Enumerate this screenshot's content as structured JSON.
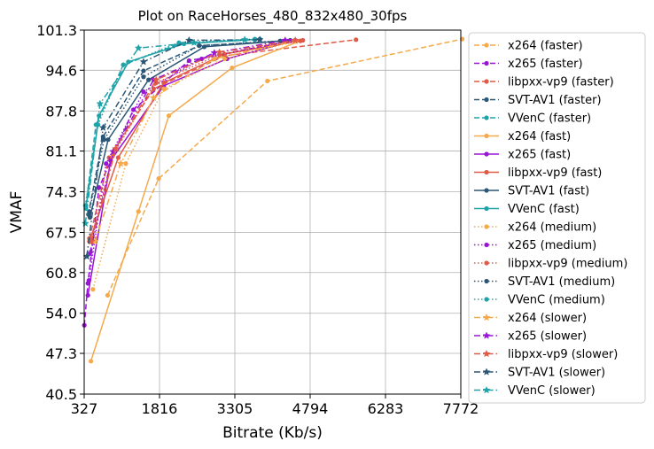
{
  "chart_data": {
    "type": "line",
    "title": "Plot on RaceHorses_480_832x480_30fps",
    "xlabel": "Bitrate (Kb/s)",
    "ylabel": "VMAF",
    "xlim": [
      327,
      7772
    ],
    "ylim": [
      40.5,
      101.3
    ],
    "xticks": [
      "327",
      "1816",
      "3305",
      "4794",
      "6283",
      "7772"
    ],
    "yticks": [
      "40.5",
      "47.3",
      "54.0",
      "60.8",
      "67.5",
      "74.3",
      "81.1",
      "87.8",
      "94.6",
      "101.3"
    ],
    "grid": true,
    "legend_position": "outside-right",
    "series": [
      {
        "name": "x264 (faster)",
        "color": "#f5a94a",
        "dash": "dashed",
        "marker": "circle",
        "points": [
          [
            790,
            57.0
          ],
          [
            1800,
            76.5
          ],
          [
            3950,
            92.8
          ],
          [
            7800,
            99.8
          ]
        ]
      },
      {
        "name": "x265 (faster)",
        "color": "#9a14d6",
        "dash": "dashed",
        "marker": "circle",
        "points": [
          [
            330,
            52.0
          ],
          [
            400,
            59.0
          ],
          [
            620,
            75.0
          ],
          [
            1300,
            88.0
          ],
          [
            2400,
            96.2
          ],
          [
            4400,
            99.5
          ]
        ]
      },
      {
        "name": "libpxx-vp9 (faster)",
        "color": "#e05a47",
        "dash": "dashed",
        "marker": "circle",
        "points": [
          [
            430,
            66.5
          ],
          [
            820,
            80.0
          ],
          [
            1700,
            91.5
          ],
          [
            3100,
            97.0
          ],
          [
            5700,
            99.7
          ]
        ]
      },
      {
        "name": "SVT-AV1 (faster)",
        "color": "#2b5676",
        "dash": "dashed",
        "marker": "circle",
        "points": [
          [
            410,
            70.5
          ],
          [
            700,
            83.5
          ],
          [
            1500,
            94.5
          ],
          [
            2600,
            98.7
          ],
          [
            4300,
            99.5
          ]
        ]
      },
      {
        "name": "VVenC (faster)",
        "color": "#1ea3a8",
        "dash": "dashed",
        "marker": "circle",
        "points": [
          [
            360,
            72.0
          ],
          [
            560,
            85.5
          ],
          [
            1100,
            95.5
          ],
          [
            2200,
            99.0
          ],
          [
            3700,
            99.7
          ]
        ]
      },
      {
        "name": "x264 (fast)",
        "color": "#f5a94a",
        "dash": "solid",
        "marker": "circle",
        "points": [
          [
            460,
            46.0
          ],
          [
            1400,
            71.0
          ],
          [
            2000,
            87.0
          ],
          [
            3250,
            95.0
          ],
          [
            4600,
            99.5
          ]
        ]
      },
      {
        "name": "x265 (fast)",
        "color": "#9a14d6",
        "dash": "solid",
        "marker": "circle",
        "points": [
          [
            400,
            57.0
          ],
          [
            850,
            79.5
          ],
          [
            1900,
            92.0
          ],
          [
            3150,
            96.5
          ],
          [
            4500,
            99.6
          ]
        ]
      },
      {
        "name": "libpxx-vp9 (fast)",
        "color": "#e05a47",
        "dash": "solid",
        "marker": "circle",
        "points": [
          [
            430,
            66.0
          ],
          [
            1000,
            80.0
          ],
          [
            1900,
            92.5
          ],
          [
            3100,
            97.3
          ],
          [
            4650,
            99.6
          ]
        ]
      },
      {
        "name": "SVT-AV1 (fast)",
        "color": "#2b5676",
        "dash": "solid",
        "marker": "circle",
        "points": [
          [
            440,
            70.0
          ],
          [
            800,
            83.0
          ],
          [
            1600,
            93.0
          ],
          [
            2700,
            98.5
          ],
          [
            4400,
            99.6
          ]
        ]
      },
      {
        "name": "VVenC (fast)",
        "color": "#1ea3a8",
        "dash": "solid",
        "marker": "circle",
        "points": [
          [
            360,
            71.5
          ],
          [
            620,
            87.0
          ],
          [
            1200,
            96.0
          ],
          [
            2300,
            99.0
          ],
          [
            3800,
            99.8
          ]
        ]
      },
      {
        "name": "x264 (medium)",
        "color": "#f5a94a",
        "dash": "dotted",
        "marker": "circle",
        "points": [
          [
            500,
            58.0
          ],
          [
            1150,
            79.0
          ],
          [
            1900,
            91.5
          ],
          [
            3100,
            96.5
          ],
          [
            4500,
            99.4
          ]
        ]
      },
      {
        "name": "x265 (medium)",
        "color": "#9a14d6",
        "dash": "dotted",
        "marker": "circle",
        "points": [
          [
            420,
            59.5
          ],
          [
            760,
            79.0
          ],
          [
            1500,
            91.0
          ],
          [
            2650,
            96.5
          ],
          [
            4400,
            99.5
          ]
        ]
      },
      {
        "name": "libpxx-vp9 (medium)",
        "color": "#e05a47",
        "dash": "dotted",
        "marker": "circle",
        "points": [
          [
            450,
            66.0
          ],
          [
            900,
            80.5
          ],
          [
            1750,
            92.5
          ],
          [
            3000,
            97.2
          ],
          [
            4600,
            99.5
          ]
        ]
      },
      {
        "name": "SVT-AV1 (medium)",
        "color": "#2b5676",
        "dash": "dotted",
        "marker": "circle",
        "points": [
          [
            430,
            71.0
          ],
          [
            720,
            83.0
          ],
          [
            1500,
            93.5
          ],
          [
            2600,
            98.7
          ],
          [
            4200,
            99.5
          ]
        ]
      },
      {
        "name": "VVenC (medium)",
        "color": "#1ea3a8",
        "dash": "dotted",
        "marker": "circle",
        "points": [
          [
            350,
            72.0
          ],
          [
            600,
            85.5
          ],
          [
            1100,
            95.5
          ],
          [
            2200,
            99.2
          ],
          [
            3700,
            99.8
          ]
        ]
      },
      {
        "name": "x264 (slower)",
        "color": "#f5a94a",
        "dash": "dashdot",
        "marker": "star",
        "points": [
          [
            540,
            66.0
          ],
          [
            1050,
            79.0
          ],
          [
            1700,
            90.0
          ],
          [
            2900,
            96.5
          ],
          [
            4500,
            99.5
          ]
        ]
      },
      {
        "name": "x265 (slower)",
        "color": "#9a14d6",
        "dash": "dashdot",
        "marker": "star",
        "points": [
          [
            440,
            64.0
          ],
          [
            900,
            81.0
          ],
          [
            1700,
            93.0
          ],
          [
            2900,
            97.5
          ],
          [
            4300,
            99.6
          ]
        ]
      },
      {
        "name": "libpxx-vp9 (slower)",
        "color": "#e05a47",
        "dash": "dashdot",
        "marker": "star",
        "points": [
          [
            470,
            66.0
          ],
          [
            950,
            81.5
          ],
          [
            1750,
            93.0
          ],
          [
            3000,
            97.6
          ],
          [
            4500,
            99.6
          ]
        ]
      },
      {
        "name": "SVT-AV1 (slower)",
        "color": "#2b5676",
        "dash": "dashdot",
        "marker": "star",
        "points": [
          [
            380,
            63.5
          ],
          [
            700,
            85.0
          ],
          [
            1500,
            96.0
          ],
          [
            2400,
            99.6
          ],
          [
            3800,
            99.7
          ]
        ]
      },
      {
        "name": "VVenC (slower)",
        "color": "#1ea3a8",
        "dash": "dashdot",
        "marker": "star",
        "points": [
          [
            350,
            69.0
          ],
          [
            640,
            89.0
          ],
          [
            1400,
            98.3
          ],
          [
            2500,
            99.2
          ],
          [
            3500,
            99.7
          ]
        ]
      }
    ]
  }
}
